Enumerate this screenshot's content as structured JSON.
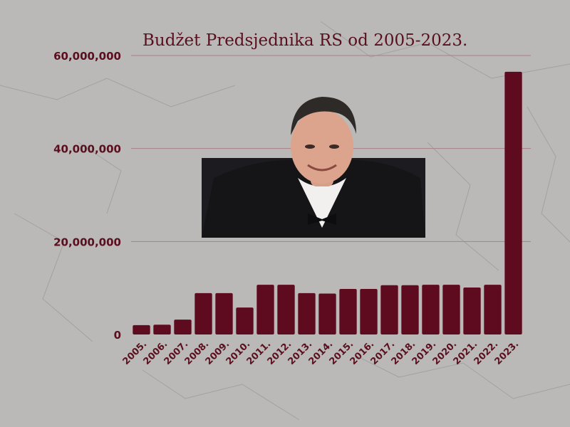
{
  "chart_data": {
    "type": "bar",
    "title": "Budžet Predsjednika RS od 2005-2023.",
    "xlabel": "",
    "ylabel": "",
    "categories": [
      "2005.",
      "2006.",
      "2007.",
      "2008.",
      "2009.",
      "2010.",
      "2011.",
      "2012.",
      "2013.",
      "2014.",
      "2015.",
      "2016.",
      "2017.",
      "2018.",
      "2019.",
      "2020.",
      "2021.",
      "2022.",
      "2023."
    ],
    "values": [
      2000000,
      2100000,
      3200000,
      8900000,
      8900000,
      5800000,
      10700000,
      10700000,
      8900000,
      8800000,
      9800000,
      9800000,
      10600000,
      10600000,
      10700000,
      10700000,
      10100000,
      10700000,
      56500000
    ],
    "ylim": [
      0,
      60000000
    ],
    "yticks": [
      "0",
      "20,000,000",
      "40,000,000",
      "60,000,000"
    ],
    "ytick_values": [
      0,
      20000000,
      40000000,
      60000000
    ],
    "grid": true,
    "bar_color": "#5e0a1f",
    "grid_color": "#a88088",
    "text_color": "#5a0f1f"
  },
  "photo": {
    "icon": "politician-portrait-photo"
  }
}
